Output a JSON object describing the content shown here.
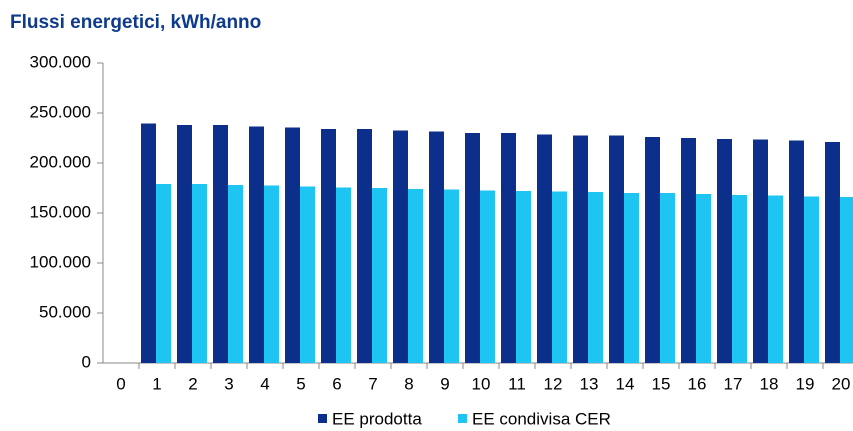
{
  "chart_data": {
    "type": "bar",
    "title": "Flussi energetici, kWh/anno",
    "categories": [
      "0",
      "1",
      "2",
      "3",
      "4",
      "5",
      "6",
      "7",
      "8",
      "9",
      "10",
      "11",
      "12",
      "13",
      "14",
      "15",
      "16",
      "17",
      "18",
      "19",
      "20"
    ],
    "series": [
      {
        "name": "EE prodotta",
        "color": "#0b2f8a",
        "values": [
          null,
          239500,
          238000,
          238000,
          236500,
          235500,
          234000,
          234000,
          232500,
          231500,
          230000,
          230000,
          228500,
          227500,
          227500,
          226000,
          225000,
          224000,
          223500,
          222500,
          221000
        ]
      },
      {
        "name": "EE condivisa CER",
        "color": "#1ec4f2",
        "values": [
          null,
          179000,
          179000,
          178000,
          177500,
          176500,
          175500,
          175000,
          174000,
          173500,
          172500,
          172000,
          171500,
          171000,
          170000,
          170000,
          169000,
          168000,
          167500,
          166500,
          166000
        ]
      }
    ],
    "ylim": [
      0,
      300000
    ],
    "yticks": [
      0,
      {
        "value": 50000,
        "label": "50.000"
      },
      {
        "value": 100000,
        "label": "100.000"
      },
      {
        "value": 150000,
        "label": "150.000"
      },
      {
        "value": 200000,
        "label": "200.000"
      },
      {
        "value": 250000,
        "label": "250.000"
      },
      {
        "value": 300000,
        "label": "300.000"
      }
    ],
    "grid": false,
    "legend": "bottom"
  }
}
